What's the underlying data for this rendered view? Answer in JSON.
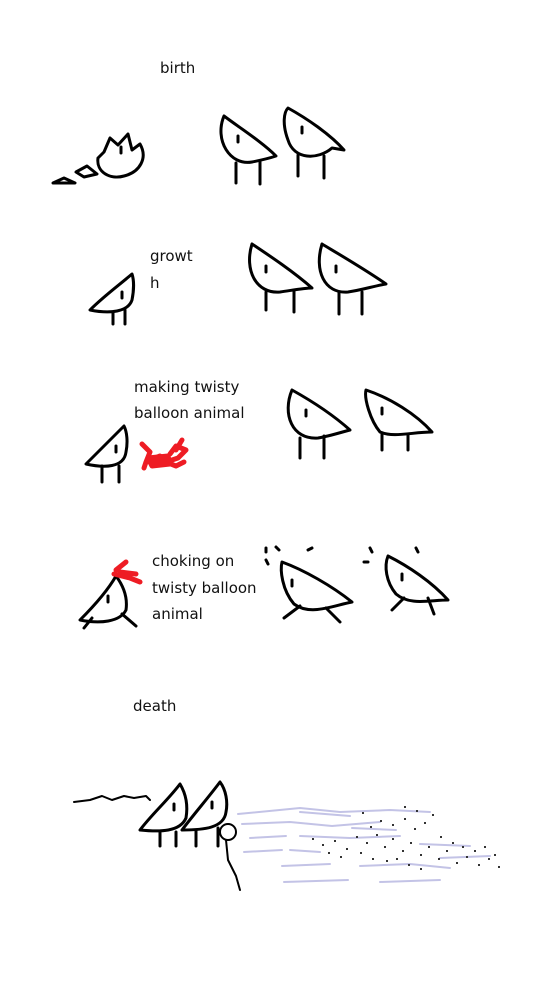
{
  "panels": {
    "birth": {
      "caption": "birth"
    },
    "growth": {
      "caption_line1": "growt",
      "caption_line2": "h"
    },
    "making": {
      "caption_line1": "making twisty",
      "caption_line2": "balloon animal"
    },
    "choking": {
      "caption_line1": "choking on",
      "caption_line2": "twisty balloon",
      "caption_line3": "animal"
    },
    "death": {
      "caption": "death"
    }
  },
  "colors": {
    "ink": "#000000",
    "balloon": "#ee1c24",
    "water": "#c3c3e6",
    "background": "#ffffff"
  }
}
